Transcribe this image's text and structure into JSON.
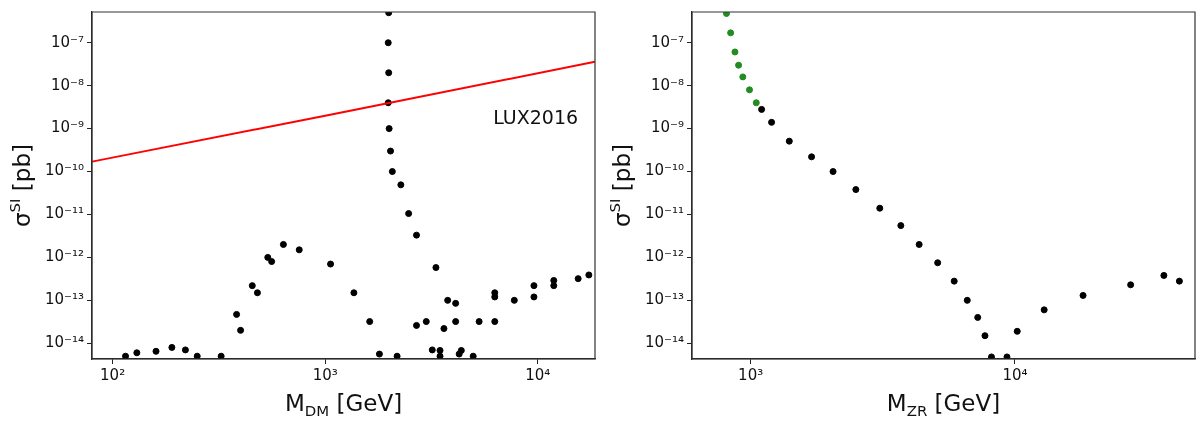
{
  "chart_data": [
    {
      "type": "scatter",
      "log": "xy",
      "xlabel": "M$_{DM}$ [GeV]",
      "ylabel": "σ$^{SI}$ [pb]",
      "xlim": [
        80,
        18600
      ],
      "ylim": [
        4.3e-15,
        5.2e-07
      ],
      "xticks": [
        {
          "value": 100,
          "label": "10²"
        },
        {
          "value": 1000,
          "label": "10³"
        },
        {
          "value": 10000,
          "label": "10⁴"
        }
      ],
      "yticks": [
        {
          "value": 1e-14,
          "label": "10⁻¹⁴"
        },
        {
          "value": 1e-13,
          "label": "10⁻¹³"
        },
        {
          "value": 1e-12,
          "label": "10⁻¹²"
        },
        {
          "value": 1e-11,
          "label": "10⁻¹¹"
        },
        {
          "value": 1e-10,
          "label": "10⁻¹⁰"
        },
        {
          "value": 1e-09,
          "label": "10⁻⁹"
        },
        {
          "value": 1e-08,
          "label": "10⁻⁸"
        },
        {
          "value": 1e-07,
          "label": "10⁻⁷"
        }
      ],
      "series": [
        {
          "name": "LUX2016",
          "type": "line",
          "color": "#ff0000",
          "marker": "none",
          "x": [
            80,
            1000,
            18600
          ],
          "values": [
            1.7e-10,
            2e-09,
            3.6e-08
          ]
        },
        {
          "marker": "circle",
          "color": "#000000",
          "x": [
            115,
            130,
            160,
            190,
            220,
            250,
            324,
            400,
            383,
            480,
            454,
            560,
            537,
            636,
            755,
            1060,
            1365,
            1620,
            1800,
            1990,
            1980,
            1990,
            1980,
            2000,
            2030,
            2070,
            2270,
            2470,
            2690,
            3320,
            3770,
            4110,
            4370,
            2990,
            3190,
            3470,
            3620,
            2180,
            2690,
            4110,
            6280,
            9600,
            17400,
            3470,
            6280,
            11900,
            4270,
            5300,
            7760,
            11900,
            4970,
            6280,
            9600,
            15500
          ],
          "values": [
            5e-15,
            6e-15,
            6.5e-15,
            8e-15,
            7e-15,
            5e-15,
            5e-15,
            2e-14,
            4.7e-14,
            1.5e-13,
            2.2e-13,
            8e-13,
            1e-12,
            2e-12,
            1.5e-12,
            7e-13,
            1.5e-13,
            3.2e-14,
            5.6e-15,
            5e-07,
            1e-07,
            2e-08,
            4e-09,
            1e-09,
            3e-10,
            1e-10,
            4.9e-11,
            1.05e-11,
            3.3e-12,
            5.8e-13,
            1e-13,
            3.2e-14,
            6.8e-15,
            3.2e-14,
            7e-15,
            6.8e-15,
            2.2e-14,
            5e-15,
            2.6e-14,
            8.5e-14,
            1.5e-13,
            2.2e-13,
            3.9e-13,
            5e-15,
            1.2e-13,
            2.9e-13,
            5.6e-15,
            3.2e-14,
            1e-13,
            2.2e-13,
            5e-15,
            3.2e-14,
            1.2e-13,
            3.2e-13
          ]
        }
      ]
    },
    {
      "type": "scatter",
      "log": "xy",
      "xlabel": "M$_{ZR}$ [GeV]",
      "ylabel": "σ$^{SI}$ [pb]",
      "xlim": [
        600,
        48000
      ],
      "ylim": [
        4.3e-15,
        5.2e-07
      ],
      "xticks": [
        {
          "value": 1000,
          "label": "10³"
        },
        {
          "value": 10000,
          "label": "10⁴"
        }
      ],
      "yticks": [
        {
          "value": 1e-14,
          "label": "10⁻¹⁴"
        },
        {
          "value": 1e-13,
          "label": "10⁻¹³"
        },
        {
          "value": 1e-12,
          "label": "10⁻¹²"
        },
        {
          "value": 1e-11,
          "label": "10⁻¹¹"
        },
        {
          "value": 1e-10,
          "label": "10⁻¹⁰"
        },
        {
          "value": 1e-09,
          "label": "10⁻⁹"
        },
        {
          "value": 1e-08,
          "label": "10⁻⁸"
        },
        {
          "value": 1e-07,
          "label": "10⁻⁷"
        }
      ],
      "series": [
        {
          "marker": "circle",
          "color": "#228b22",
          "x": [
            810,
            840,
            872,
            900,
            934,
            990,
            1050
          ],
          "values": [
            4.8e-07,
            1.7e-07,
            6.1e-08,
            3e-08,
            1.6e-08,
            8e-09,
            4e-09
          ]
        },
        {
          "marker": "circle",
          "color": "#000000",
          "x": [
            1100,
            1200,
            1400,
            1700,
            2050,
            2500,
            3080,
            3700,
            4340,
            5100,
            5890,
            6600,
            7230,
            7700,
            8150,
            9330,
            10200,
            12900,
            18100,
            27400,
            36600,
            41900
          ],
          "values": [
            2.8e-09,
            1.4e-09,
            5.1e-10,
            2.2e-10,
            1e-10,
            3.8e-11,
            1.4e-11,
            5.5e-12,
            2e-12,
            7.5e-13,
            2.8e-13,
            1e-13,
            4e-14,
            1.5e-14,
            4.8e-15,
            4.8e-15,
            1.9e-14,
            6e-14,
            1.3e-13,
            2.3e-13,
            3.8e-13,
            2.8e-13
          ]
        }
      ]
    }
  ]
}
